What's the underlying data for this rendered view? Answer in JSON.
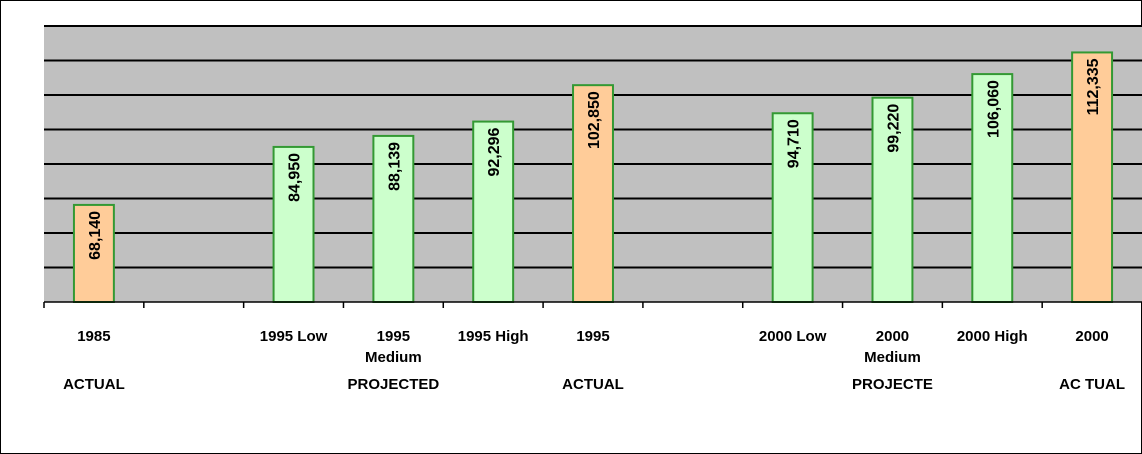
{
  "chart_data": {
    "type": "bar",
    "categories": [
      "1985",
      "",
      "1995 Low",
      "1995 Medium",
      "1995 High",
      "1995",
      "",
      "2000 Low",
      "2000 Medium",
      "2000 High",
      "2000"
    ],
    "values": [
      68140,
      null,
      84950,
      88139,
      92296,
      102850,
      null,
      94710,
      99220,
      106060,
      112335
    ],
    "value_labels": [
      "68,140",
      "",
      "84,950",
      "88,139",
      "92,296",
      "102,850",
      "",
      "94,710",
      "99,220",
      "106,060",
      "112,335"
    ],
    "bar_kinds": [
      "actual",
      "",
      "projected",
      "projected",
      "projected",
      "actual",
      "",
      "projected",
      "projected",
      "projected",
      "actual"
    ],
    "group_labels": [
      {
        "text": "ACTUAL",
        "category_index": 0
      },
      {
        "text": "PROJECTED",
        "category_index": 3
      },
      {
        "text": "ACTUAL",
        "category_index": 5
      },
      {
        "text": "PROJECTE",
        "category_index": 8
      },
      {
        "text": "AC TUAL",
        "category_index": 10
      }
    ],
    "ylim": [
      40000,
      120000
    ],
    "gridline_step": 10000,
    "grid": true,
    "title": "",
    "xlabel": "",
    "ylabel": "",
    "colors": {
      "plot_background": "#c0c0c0",
      "actual_fill": "#ffcc99",
      "projected_fill": "#ccffcc",
      "bar_border": "#339933",
      "gridline": "#000000"
    }
  }
}
